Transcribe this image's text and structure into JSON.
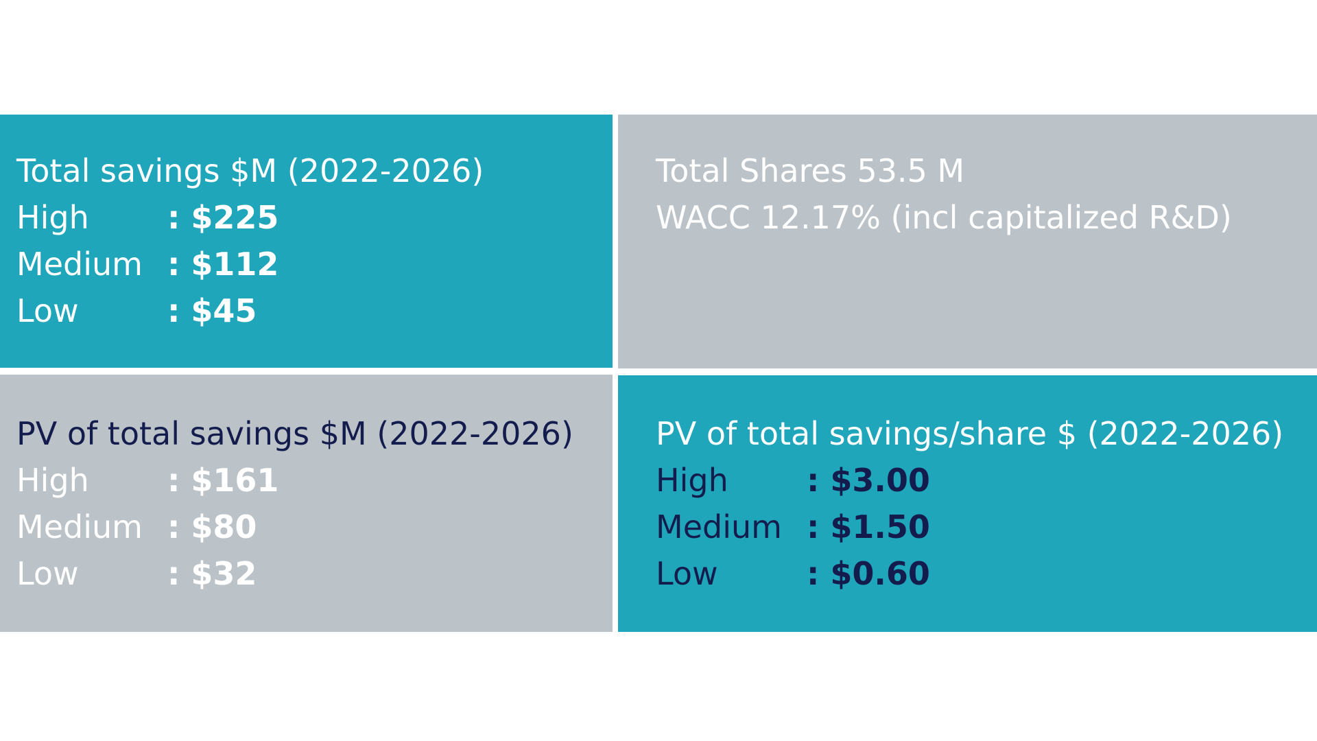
{
  "top_left": {
    "title": "Total savings $M (2022-2026)",
    "rows": [
      {
        "label": "High",
        "value": ": $225"
      },
      {
        "label": "Medium",
        "value": ": $112"
      },
      {
        "label": "Low",
        "value": ": $45"
      }
    ]
  },
  "top_right": {
    "line1": "Total Shares 53.5 M",
    "line2": "WACC 12.17% (incl capitalized R&D)"
  },
  "bottom_left": {
    "title": "PV of total savings $M (2022-2026)",
    "rows": [
      {
        "label": "High",
        "value": ": $161"
      },
      {
        "label": "Medium",
        "value": ": $80"
      },
      {
        "label": "Low",
        "value": ": $32"
      }
    ]
  },
  "bottom_right": {
    "title": "PV of total savings/share $ (2022-2026)",
    "rows": [
      {
        "label": "High",
        "value": ": $3.00"
      },
      {
        "label": "Medium",
        "value": ": $1.50"
      },
      {
        "label": "Low",
        "value": ": $0.60"
      }
    ]
  },
  "colors": {
    "teal": "#1fa6ba",
    "grey": "#bbc3c8",
    "navy": "#141c4e",
    "white": "#ffffff"
  }
}
